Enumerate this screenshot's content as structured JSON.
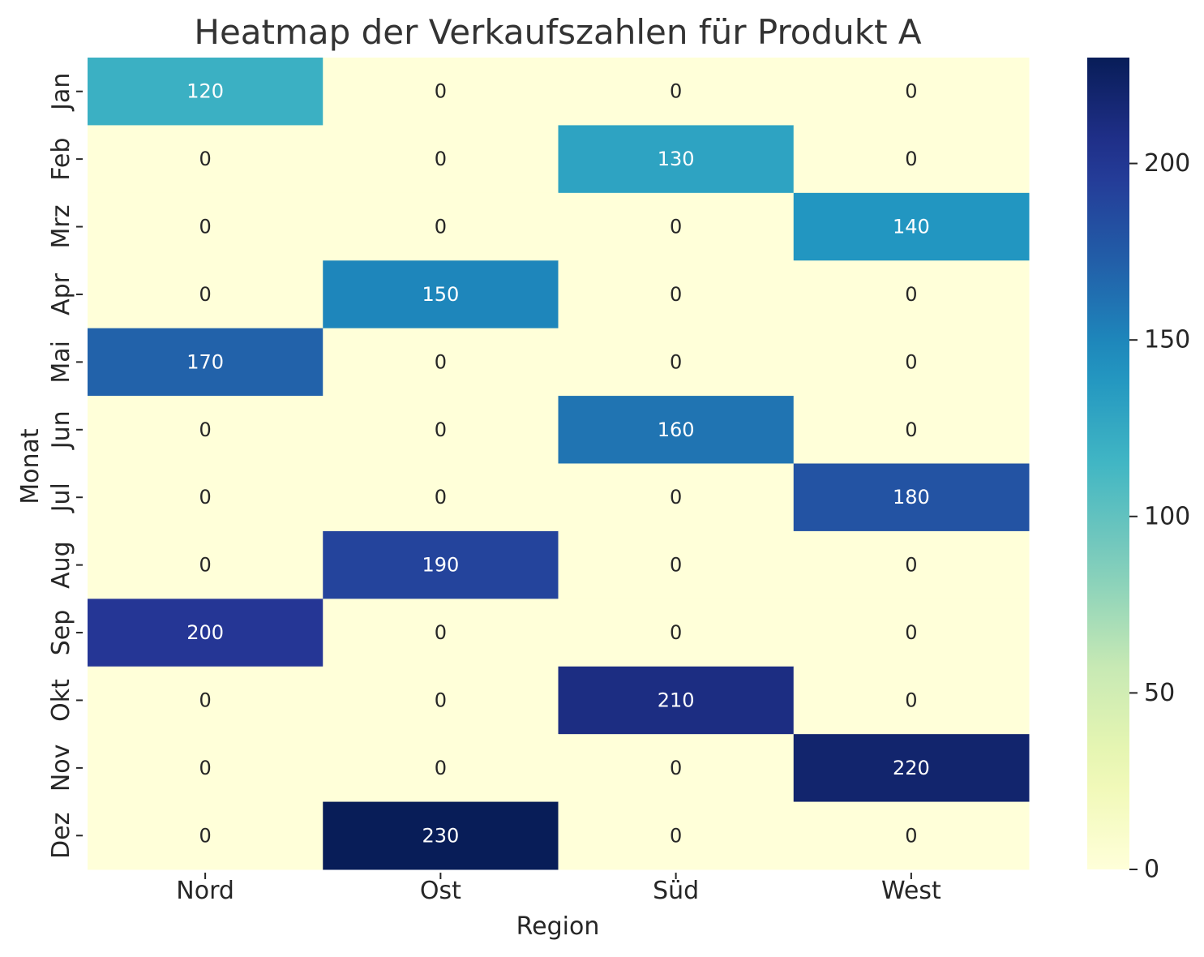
{
  "chart_data": {
    "type": "heatmap",
    "title": "Heatmap der Verkaufszahlen für Produkt A",
    "xlabel": "Region",
    "ylabel": "Monat",
    "x_categories": [
      "Nord",
      "Ost",
      "Süd",
      "West"
    ],
    "y_categories": [
      "Jan",
      "Feb",
      "Mrz",
      "Apr",
      "Mai",
      "Jun",
      "Jul",
      "Aug",
      "Sep",
      "Okt",
      "Nov",
      "Dez"
    ],
    "values": [
      [
        120,
        0,
        0,
        0
      ],
      [
        0,
        0,
        130,
        0
      ],
      [
        0,
        0,
        0,
        140
      ],
      [
        0,
        150,
        0,
        0
      ],
      [
        170,
        0,
        0,
        0
      ],
      [
        0,
        0,
        160,
        0
      ],
      [
        0,
        0,
        0,
        180
      ],
      [
        0,
        190,
        0,
        0
      ],
      [
        200,
        0,
        0,
        0
      ],
      [
        0,
        0,
        210,
        0
      ],
      [
        0,
        0,
        0,
        220
      ],
      [
        0,
        230,
        0,
        0
      ]
    ],
    "colormap": "YlGnBu",
    "colorbar": {
      "range": [
        0,
        230
      ],
      "ticks": [
        0,
        50,
        100,
        150,
        200
      ]
    },
    "colors": {
      "low": "#ffffd9",
      "high": "#081d58"
    }
  }
}
